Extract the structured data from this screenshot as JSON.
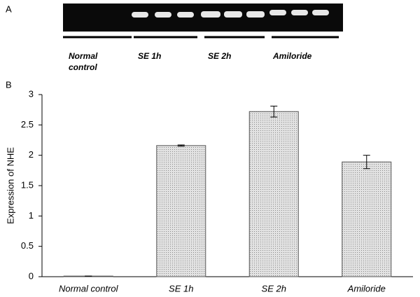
{
  "gel": {
    "panel_label": "A",
    "lanes": [
      "Normal control",
      "SE 1h",
      "SE 2h",
      "Amiloride"
    ]
  },
  "chart_data": {
    "type": "bar",
    "panel_label": "B",
    "ylabel": "Expression of NHE",
    "categories": [
      "Normal control",
      "SE 1h",
      "SE 2h",
      "Amiloride"
    ],
    "values": [
      0.01,
      2.16,
      2.72,
      1.89
    ],
    "errors": [
      0,
      0.01,
      0.09,
      0.11
    ],
    "color": "#d4d4d4",
    "ylim": [
      0,
      3
    ],
    "yticks": [
      0,
      0.5,
      1,
      1.5,
      2,
      2.5,
      3
    ]
  }
}
